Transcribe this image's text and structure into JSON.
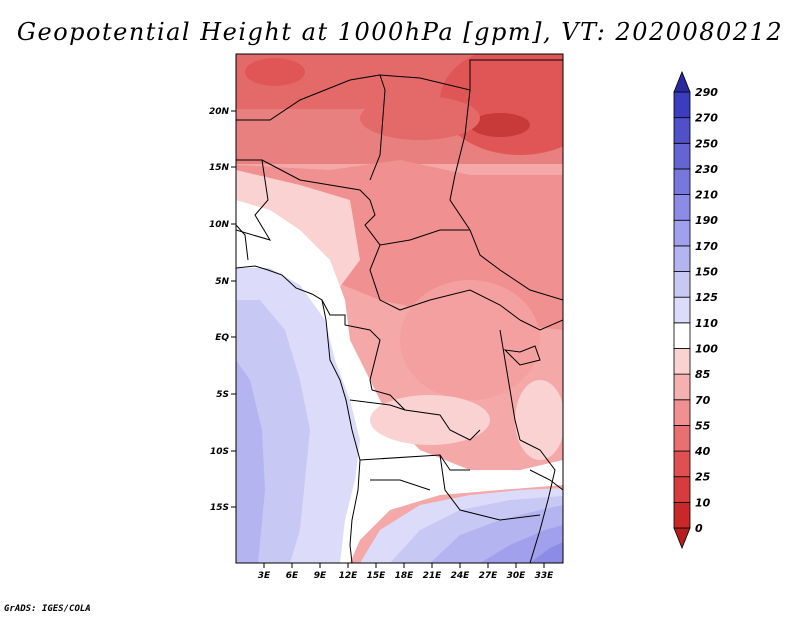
{
  "title": "Geopotential Height at 1000hPa [gpm], VT: 2020080212",
  "credit": "GrADS: IGES/COLA",
  "map": {
    "lat_labels": [
      "20N",
      "15N",
      "10N",
      "5N",
      "EQ",
      "5S",
      "10S",
      "15S"
    ],
    "lon_labels": [
      "3E",
      "6E",
      "9E",
      "12E",
      "15E",
      "18E",
      "21E",
      "24E",
      "27E",
      "30E",
      "33E"
    ]
  },
  "colorbar": {
    "levels": [
      "0",
      "10",
      "25",
      "40",
      "55",
      "70",
      "85",
      "100",
      "110",
      "125",
      "150",
      "170",
      "190",
      "210",
      "230",
      "250",
      "270",
      "290"
    ],
    "colors": [
      "#b41e1e",
      "#c82828",
      "#d73c3c",
      "#e05050",
      "#e87070",
      "#f09090",
      "#f5b0b0",
      "#fad2d2",
      "#ffffff",
      "#dcdcfa",
      "#c8c8f5",
      "#b4b4f0",
      "#a0a0ec",
      "#8c8ce6",
      "#7878dc",
      "#6464d2",
      "#5050c8",
      "#3c3cbe",
      "#2828a0"
    ]
  }
}
